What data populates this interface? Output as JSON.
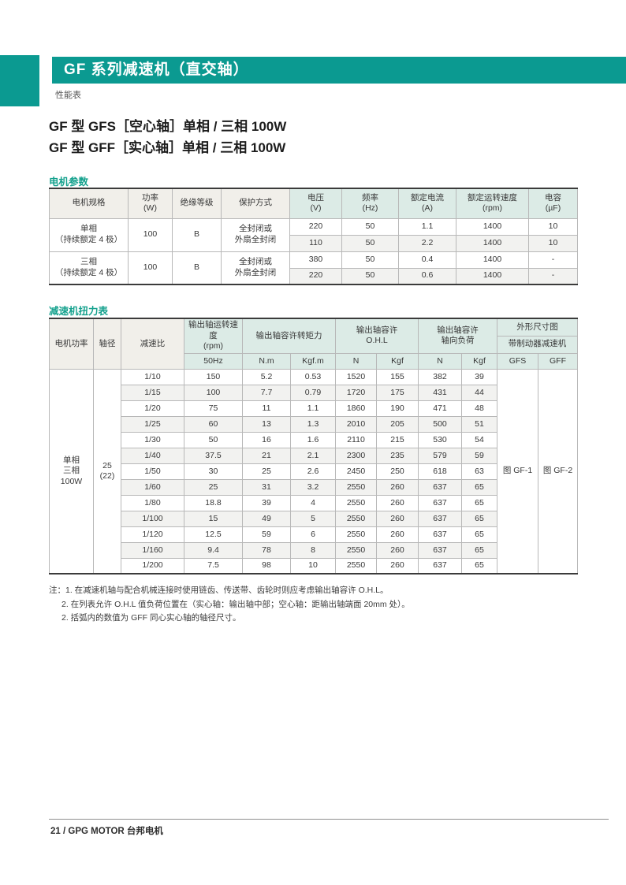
{
  "page": {
    "header_title": "GF 系列减速机（直交轴）",
    "subheader": "性能表",
    "title_line1": "GF 型 GFS［空心轴］单相 / 三相 100W",
    "title_line2": "GF 型 GFF［实心轴］单相 / 三相 100W",
    "footer": "21 / GPG MOTOR 台邦电机"
  },
  "colors": {
    "teal_bar": "#0b9a91",
    "section_label_teal": "#14a18d",
    "header_gray": "#f1efea",
    "header_tint": "#dcebe6",
    "row_stripe": "#f2f2f0"
  },
  "motor_section": {
    "label": "电机参数",
    "table": {
      "header": {
        "spec": "电机规格",
        "power": [
          "功率",
          "(W)"
        ],
        "insulation": "绝缘等级",
        "protection": "保护方式",
        "voltage": [
          "电压",
          "(V)"
        ],
        "frequency": [
          "频率",
          "(Hz)"
        ],
        "current": [
          "额定电流",
          "(A)"
        ],
        "speed": [
          "额定运转速度",
          "(rpm)"
        ],
        "capacitor": [
          "电容",
          "(µF)"
        ]
      },
      "groups": [
        {
          "spec": [
            "单相",
            "（持续额定 4 极）"
          ],
          "power": "100",
          "insulation": "B",
          "protection": [
            "全封闭或",
            "外扇全封闭"
          ],
          "rows": [
            [
              "220",
              "50",
              "1.1",
              "1400",
              "10"
            ],
            [
              "110",
              "50",
              "2.2",
              "1400",
              "10"
            ]
          ]
        },
        {
          "spec": [
            "三相",
            "（持续额定 4 极）"
          ],
          "power": "100",
          "insulation": "B",
          "protection": [
            "全封闭或",
            "外扇全封闭"
          ],
          "rows": [
            [
              "380",
              "50",
              "0.4",
              "1400",
              "-"
            ],
            [
              "220",
              "50",
              "0.6",
              "1400",
              "-"
            ]
          ]
        }
      ]
    }
  },
  "torque_section": {
    "label": "减速机扭力表",
    "table": {
      "header": {
        "motor_power": "电机功率",
        "shaft": "轴径",
        "ratio": "减速比",
        "speed_label": "输出轴运转速度",
        "speed_unit": "(rpm)",
        "torque_label": "输出轴容许转矩力",
        "ohl_line1": "输出轴容许",
        "ohl_line2": "O.H.L",
        "axial_line1": "输出轴容许",
        "axial_line2": "轴向负荷",
        "dim_fig": "外形尺寸图",
        "brake": "带制动器减速机",
        "sub": [
          "50Hz",
          "N.m",
          "Kgf.m",
          "N",
          "Kgf",
          "N",
          "Kgf",
          "GFS",
          "GFF"
        ]
      },
      "merged": {
        "motor_power_lines": [
          "单相",
          "三相",
          "100W"
        ],
        "shaft_lines": [
          "25",
          "(22)"
        ],
        "fig_gfs": "图 GF-1",
        "fig_gff": "图 GF-2"
      },
      "rows": [
        [
          "1/10",
          "150",
          "5.2",
          "0.53",
          "1520",
          "155",
          "382",
          "39"
        ],
        [
          "1/15",
          "100",
          "7.7",
          "0.79",
          "1720",
          "175",
          "431",
          "44"
        ],
        [
          "1/20",
          "75",
          "11",
          "1.1",
          "1860",
          "190",
          "471",
          "48"
        ],
        [
          "1/25",
          "60",
          "13",
          "1.3",
          "2010",
          "205",
          "500",
          "51"
        ],
        [
          "1/30",
          "50",
          "16",
          "1.6",
          "2110",
          "215",
          "530",
          "54"
        ],
        [
          "1/40",
          "37.5",
          "21",
          "2.1",
          "2300",
          "235",
          "579",
          "59"
        ],
        [
          "1/50",
          "30",
          "25",
          "2.6",
          "2450",
          "250",
          "618",
          "63"
        ],
        [
          "1/60",
          "25",
          "31",
          "3.2",
          "2550",
          "260",
          "637",
          "65"
        ],
        [
          "1/80",
          "18.8",
          "39",
          "4",
          "2550",
          "260",
          "637",
          "65"
        ],
        [
          "1/100",
          "15",
          "49",
          "5",
          "2550",
          "260",
          "637",
          "65"
        ],
        [
          "1/120",
          "12.5",
          "59",
          "6",
          "2550",
          "260",
          "637",
          "65"
        ],
        [
          "1/160",
          "9.4",
          "78",
          "8",
          "2550",
          "260",
          "637",
          "65"
        ],
        [
          "1/200",
          "7.5",
          "98",
          "10",
          "2550",
          "260",
          "637",
          "65"
        ]
      ]
    }
  },
  "notes": {
    "line1": "注：1. 在减速机轴与配合机械连接时使用链齿、传送带、齿轮时则应考虑输出轴容许 O.H.L。",
    "line2": "2. 在列表允许 O.H.L 值负荷位置在（实心轴：输出轴中部；空心轴：距输出轴端面 20mm 处）。",
    "line3": "2. 括弧内的数值为 GFF 同心实心轴的轴径尺寸。"
  }
}
